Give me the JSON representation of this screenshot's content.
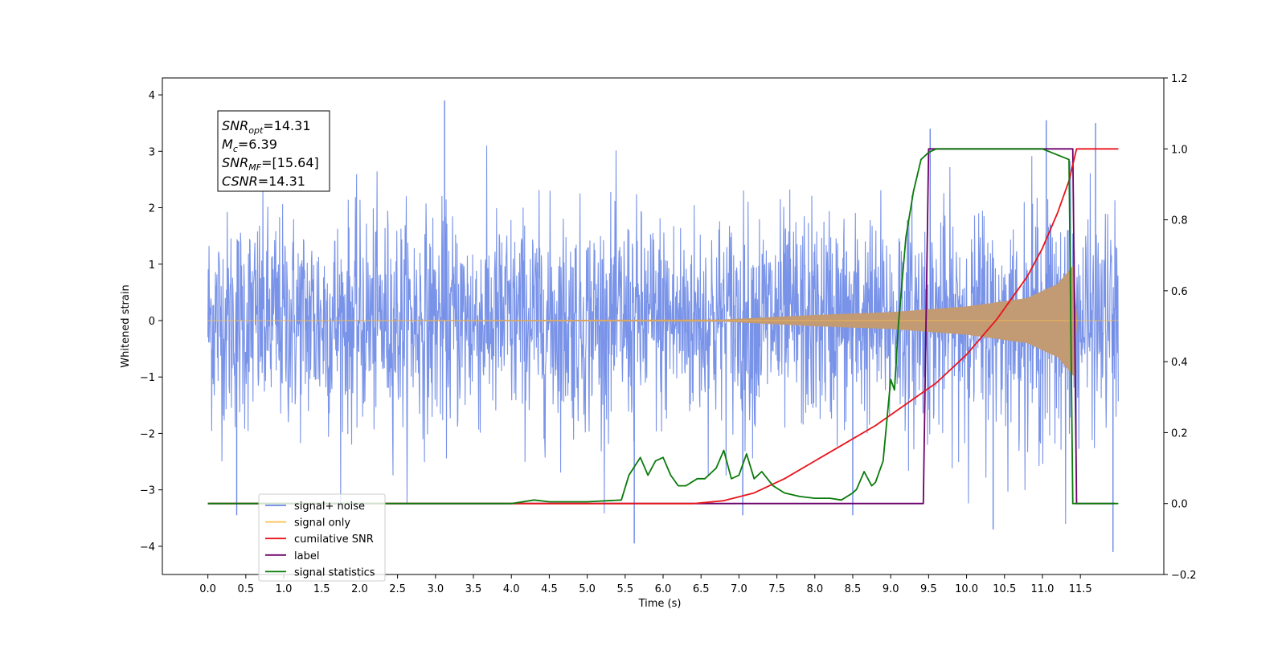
{
  "chart_data": {
    "type": "line",
    "xlabel": "Time (s)",
    "ylabel": "Whitened strain",
    "xlim": [
      -0.6,
      12.6
    ],
    "ylim_left": [
      -4.5,
      4.3
    ],
    "ylim_right": [
      -0.2,
      1.2
    ],
    "x_ticks": [
      0.0,
      0.5,
      1.0,
      1.5,
      2.0,
      2.5,
      3.0,
      3.5,
      4.0,
      4.5,
      5.0,
      5.5,
      6.0,
      6.5,
      7.0,
      7.5,
      8.0,
      8.5,
      9.0,
      9.5,
      10.0,
      10.5,
      11.0,
      11.5
    ],
    "x_tick_labels": [
      "0.0",
      "0.5",
      "1.0",
      "1.5",
      "2.0",
      "2.5",
      "3.0",
      "3.5",
      "4.0",
      "4.5",
      "5.0",
      "5.5",
      "6.0",
      "6.5",
      "7.0",
      "7.5",
      "8.0",
      "8.5",
      "9.0",
      "9.5",
      "10.0",
      "10.5",
      "11.0",
      "11.5"
    ],
    "y_left_ticks": [
      -4,
      -3,
      -2,
      -1,
      0,
      1,
      2,
      3,
      4
    ],
    "y_left_tick_labels": [
      "−4",
      "−3",
      "−2",
      "−1",
      "0",
      "1",
      "2",
      "3",
      "4"
    ],
    "y_right_ticks": [
      -0.2,
      0.0,
      0.2,
      0.4,
      0.6,
      0.8,
      1.0,
      1.2
    ],
    "y_right_tick_labels": [
      "−0.2",
      "0.0",
      "0.2",
      "0.4",
      "0.6",
      "0.8",
      "1.0",
      "1.2"
    ],
    "grid": false,
    "legend_location": "lower-left",
    "legend": [
      {
        "label": "signal+ noise",
        "color": "#6a87e6"
      },
      {
        "label": "signal only",
        "color": "#ffc04d"
      },
      {
        "label": "cumilative SNR",
        "color": "#e8141b"
      },
      {
        "label": "label",
        "color": "#6b006b"
      },
      {
        "label": "signal statistics",
        "color": "#0a7a0a"
      }
    ],
    "annotation_lines": [
      {
        "main": "SNR",
        "sub": "opt",
        "value": "=14.31"
      },
      {
        "main": "M",
        "sub": "c",
        "value": "=6.39"
      },
      {
        "main": "SNR",
        "sub": "MF",
        "value": "=[15.64]"
      },
      {
        "main": "CSNR",
        "sub": "",
        "value": "=14.31"
      }
    ],
    "series": [
      {
        "name": "signal+ noise",
        "axis": "left",
        "color": "#6a87e6",
        "x_range": [
          0.0,
          12.0
        ],
        "approx_envelope_upper": 2.5,
        "approx_envelope_lower": -2.3,
        "notable_peaks": [
          {
            "x": 3.12,
            "y": 3.9
          },
          {
            "x": 9.52,
            "y": 3.4
          },
          {
            "x": 11.05,
            "y": 3.55
          },
          {
            "x": 11.7,
            "y": 3.5
          },
          {
            "x": 5.62,
            "y": -3.95
          },
          {
            "x": 11.93,
            "y": -4.1
          },
          {
            "x": 10.35,
            "y": -3.7
          },
          {
            "x": 0.38,
            "y": -3.45
          },
          {
            "x": 8.5,
            "y": -3.45
          },
          {
            "x": 7.05,
            "y": -3.45
          }
        ]
      },
      {
        "name": "signal only",
        "axis": "left",
        "color": "#ffc04d",
        "description_points": [
          {
            "x": 0.0,
            "amplitude": 0.0
          },
          {
            "x": 6.8,
            "amplitude": 0.02
          },
          {
            "x": 8.0,
            "amplitude": 0.1
          },
          {
            "x": 9.0,
            "amplitude": 0.15
          },
          {
            "x": 10.0,
            "amplitude": 0.25
          },
          {
            "x": 10.8,
            "amplitude": 0.4
          },
          {
            "x": 11.2,
            "amplitude": 0.65
          },
          {
            "x": 11.42,
            "amplitude": 1.0
          },
          {
            "x": 11.45,
            "amplitude": 0.0
          },
          {
            "x": 12.0,
            "amplitude": 0.0
          }
        ]
      },
      {
        "name": "cumilative SNR",
        "axis": "right",
        "color": "#e8141b",
        "x": [
          0.0,
          6.4,
          6.8,
          7.2,
          7.6,
          8.0,
          8.4,
          8.8,
          9.2,
          9.6,
          10.0,
          10.4,
          10.8,
          11.0,
          11.2,
          11.35,
          11.45,
          12.0
        ],
        "values": [
          0.0,
          0.0,
          0.008,
          0.03,
          0.07,
          0.12,
          0.17,
          0.22,
          0.28,
          0.34,
          0.42,
          0.52,
          0.64,
          0.72,
          0.82,
          0.91,
          1.0,
          1.0
        ]
      },
      {
        "name": "label",
        "axis": "right",
        "color": "#6b006b",
        "x": [
          0.0,
          9.43,
          9.5,
          11.4,
          11.45,
          11.95
        ],
        "values": [
          0.0,
          0.0,
          1.0,
          1.0,
          0.0,
          0.0
        ]
      },
      {
        "name": "signal statistics",
        "axis": "right",
        "color": "#0a7a0a",
        "x": [
          0.0,
          4.0,
          4.3,
          4.5,
          5.0,
          5.45,
          5.55,
          5.7,
          5.8,
          5.9,
          6.0,
          6.1,
          6.2,
          6.3,
          6.45,
          6.55,
          6.7,
          6.8,
          6.9,
          7.0,
          7.1,
          7.2,
          7.3,
          7.45,
          7.6,
          7.8,
          8.0,
          8.2,
          8.35,
          8.5,
          8.55,
          8.65,
          8.75,
          8.8,
          8.9,
          9.0,
          9.05,
          9.1,
          9.2,
          9.3,
          9.4,
          9.5,
          9.6,
          10.0,
          11.0,
          11.35,
          11.4,
          11.45,
          12.0
        ],
        "values": [
          0.0,
          0.0,
          0.01,
          0.005,
          0.005,
          0.01,
          0.08,
          0.13,
          0.08,
          0.12,
          0.13,
          0.08,
          0.05,
          0.05,
          0.07,
          0.07,
          0.1,
          0.15,
          0.07,
          0.08,
          0.14,
          0.07,
          0.09,
          0.05,
          0.03,
          0.02,
          0.015,
          0.015,
          0.01,
          0.03,
          0.04,
          0.09,
          0.05,
          0.06,
          0.12,
          0.35,
          0.32,
          0.5,
          0.75,
          0.88,
          0.97,
          0.99,
          1.0,
          1.0,
          1.0,
          0.97,
          0.0,
          0.0,
          0.0
        ]
      }
    ]
  }
}
